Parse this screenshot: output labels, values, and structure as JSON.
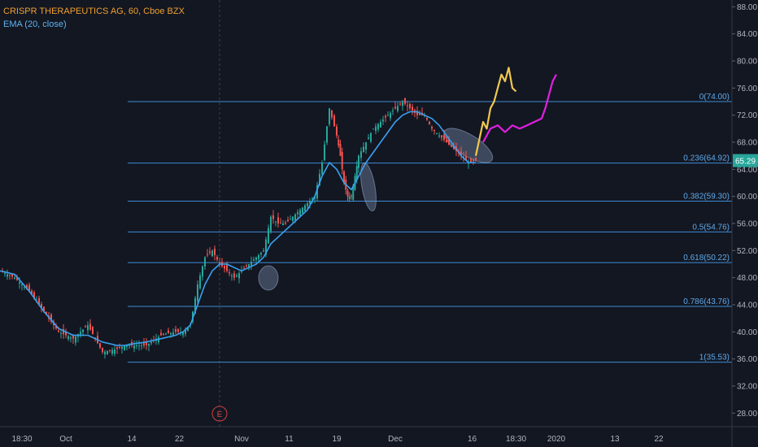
{
  "legend": {
    "title": "CRISPR THERAPEUTICS AG, 60, Cboe BZX",
    "indicator": "EMA (20, close)"
  },
  "colors": {
    "background": "#131722",
    "fib_line": "#3d8bd4",
    "ema": "#3aa0f0",
    "candle_up": "#26a69a",
    "candle_down": "#ef5350",
    "projection_yellow": "#f0c850",
    "projection_magenta": "#e020e0",
    "price_badge": "#26a69a"
  },
  "current_price": "65.29",
  "earnings_marker": "E",
  "chart_data": {
    "type": "line",
    "title": "CRISPR THERAPEUTICS AG, 60, Cboe BZX",
    "ylim": [
      26,
      89
    ],
    "y_ticks": [
      "28.00",
      "32.00",
      "36.00",
      "40.00",
      "44.00",
      "48.00",
      "52.00",
      "56.00",
      "60.00",
      "64.00",
      "68.00",
      "72.00",
      "76.00",
      "80.00",
      "84.00",
      "88.00"
    ],
    "x_ticks": [
      "18:30",
      "Oct",
      "14",
      "22",
      "Nov",
      "11",
      "19",
      "Dec",
      "16",
      "18:30",
      "2020",
      "13",
      "22"
    ],
    "x_index_range": [
      0,
      100
    ],
    "x_tick_positions": [
      3,
      9,
      18,
      24.5,
      33,
      39.5,
      46,
      54,
      64.5,
      70.5,
      76,
      84,
      90
    ],
    "fibonacci": [
      {
        "label": "0(74.00)",
        "value": 74.0
      },
      {
        "label": "0.236(64.92)",
        "value": 64.92
      },
      {
        "label": "0.382(59.30)",
        "value": 59.3
      },
      {
        "label": "0.5(54.76)",
        "value": 54.76
      },
      {
        "label": "0.618(50.22)",
        "value": 50.22
      },
      {
        "label": "0.786(43.76)",
        "value": 43.76
      },
      {
        "label": "1(35.53)",
        "value": 35.53
      }
    ],
    "series": [
      {
        "name": "Price",
        "x": [
          0,
          2,
          4,
          6,
          8,
          10,
          12,
          13,
          14,
          16,
          17,
          18,
          20,
          22,
          24,
          25,
          26,
          27,
          28,
          29,
          30,
          31,
          32,
          33,
          34,
          35,
          36,
          37,
          38,
          39,
          40,
          41,
          42,
          43,
          44,
          45,
          46,
          46.5,
          47,
          47.5,
          48,
          48.5,
          49,
          50,
          51,
          52,
          53,
          54,
          55,
          56,
          57,
          58,
          59,
          60,
          61,
          62,
          63,
          64,
          65
        ],
        "y": [
          49,
          48,
          46,
          43,
          40,
          39,
          41,
          39,
          37,
          37.5,
          38,
          38,
          38,
          39.5,
          40,
          40,
          41,
          47,
          51,
          52,
          50,
          49,
          48,
          49,
          50,
          51,
          52,
          57,
          56,
          56,
          57,
          58,
          59,
          60,
          65,
          73,
          69,
          66,
          62,
          60,
          60,
          63,
          66,
          68,
          70,
          71,
          72,
          73,
          74,
          73,
          72,
          72,
          70,
          69,
          68,
          67,
          66,
          65,
          65.3
        ]
      },
      {
        "name": "EMA (20, close)",
        "x": [
          0,
          2,
          4,
          6,
          8,
          10,
          12,
          13,
          14,
          16,
          17,
          18,
          20,
          22,
          24,
          25,
          26,
          27,
          28,
          29,
          30,
          31,
          32,
          33,
          34,
          35,
          36,
          37,
          38,
          39,
          40,
          41,
          42,
          43,
          44,
          45,
          46,
          47,
          48,
          49,
          50,
          51,
          52,
          53,
          54,
          55,
          56,
          57,
          58,
          59,
          60,
          61,
          62,
          63,
          64,
          65
        ],
        "y": [
          49,
          48.5,
          46,
          43,
          40.5,
          39.5,
          39.5,
          39,
          38.5,
          38,
          38,
          38.2,
          38.5,
          39,
          39.5,
          40,
          41,
          44,
          47,
          49,
          50,
          50,
          49.5,
          49,
          49.5,
          50,
          51,
          53,
          54,
          55,
          56,
          57,
          58,
          60,
          63,
          65,
          64,
          62,
          61,
          63,
          65,
          66.5,
          68,
          69.5,
          71,
          72,
          72.5,
          72.5,
          72,
          71.5,
          70.5,
          69,
          67.5,
          66,
          65,
          65
        ]
      },
      {
        "name": "Projection yellow",
        "x": [
          65,
          66,
          66.5,
          67,
          67.5,
          68,
          68.5,
          69,
          69.5,
          70,
          70.5
        ],
        "y": [
          66,
          71,
          70,
          73,
          74,
          76,
          78,
          77,
          79,
          76,
          75.5
        ]
      },
      {
        "name": "Projection magenta",
        "x": [
          66,
          67,
          68,
          69,
          70,
          71,
          72,
          73,
          74,
          74.5,
          75,
          75.5,
          76
        ],
        "y": [
          68,
          70,
          70.5,
          69.5,
          70.5,
          70,
          70.5,
          71,
          71.5,
          73,
          75,
          77,
          78
        ]
      }
    ]
  }
}
